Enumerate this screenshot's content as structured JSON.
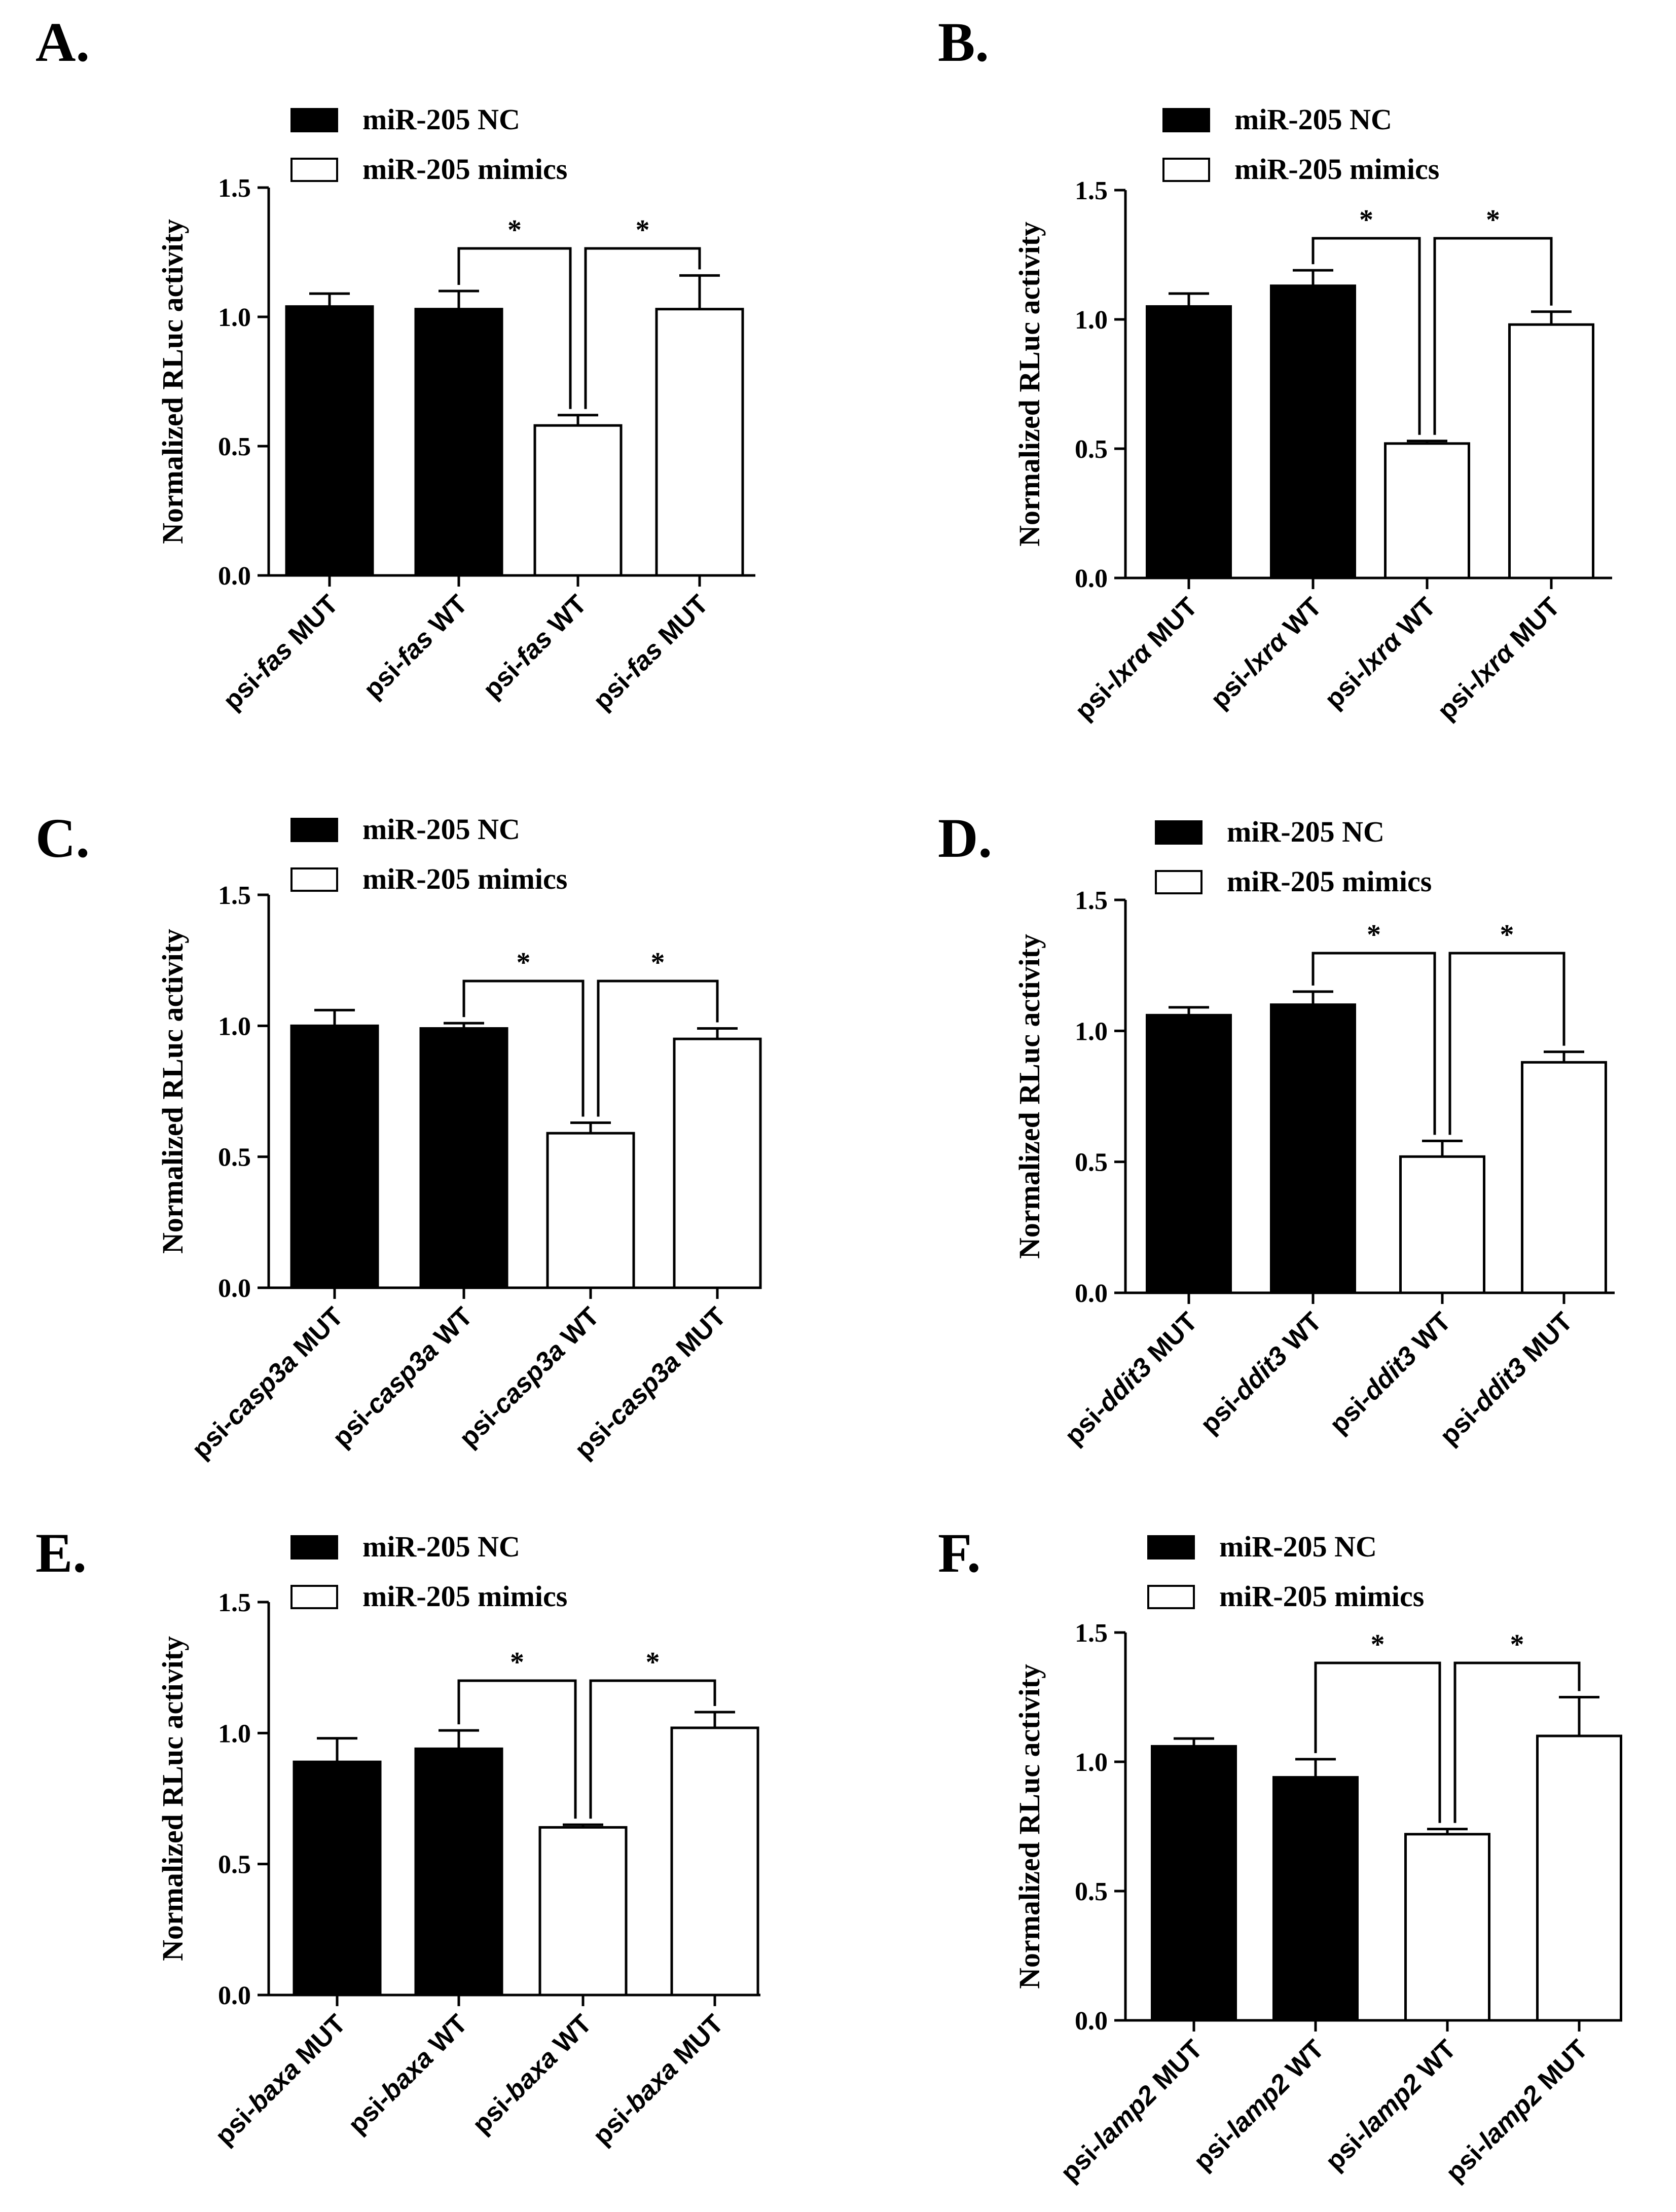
{
  "figure": {
    "panels": [
      "A.",
      "B.",
      "C.",
      "D.",
      "E.",
      "F."
    ]
  },
  "legend": {
    "nc_label": "miR-205 NC",
    "mimics_label": "miR-205 mimics"
  },
  "colors": {
    "nc": "#000000",
    "mimics": "#ffffff",
    "stroke": "#000000"
  },
  "chart_data": [
    {
      "panel": "A.",
      "type": "bar",
      "gene": "fas",
      "categories": [
        "psi-fas MUT",
        "psi-fas WT",
        "psi-fas WT",
        "psi-fas MUT"
      ],
      "category_parts": [
        [
          "psi-",
          "fas",
          " MUT"
        ],
        [
          "psi-",
          "fas",
          " WT"
        ],
        [
          "psi-",
          "fas",
          " WT"
        ],
        [
          "psi-",
          "fas",
          " MUT"
        ]
      ],
      "groups": [
        "miR-205 NC",
        "miR-205 NC",
        "miR-205 mimics",
        "miR-205 mimics"
      ],
      "values": [
        1.04,
        1.03,
        0.58,
        1.03
      ],
      "errors": [
        0.05,
        0.07,
        0.04,
        0.13
      ],
      "ylabel": "Normalized RLuc activity",
      "ylim": [
        0,
        1.5
      ],
      "yticks": [
        "0.0",
        "0.5",
        "1.0",
        "1.5"
      ],
      "significance": [
        {
          "from": 1,
          "to": 2,
          "label": "*"
        },
        {
          "from": 2,
          "to": 3,
          "label": "*"
        }
      ]
    },
    {
      "panel": "B.",
      "type": "bar",
      "gene": "lxrα",
      "categories": [
        "psi-lxrα MUT",
        "psi-lxrα WT",
        "psi-lxrα WT",
        "psi-lxrα MUT"
      ],
      "category_parts": [
        [
          "psi-",
          "lxrα",
          " MUT"
        ],
        [
          "psi-",
          "lxrα",
          " WT"
        ],
        [
          "psi-",
          "lxrα",
          " WT"
        ],
        [
          "psi-",
          "lxrα",
          " MUT"
        ]
      ],
      "groups": [
        "miR-205 NC",
        "miR-205 NC",
        "miR-205 mimics",
        "miR-205 mimics"
      ],
      "values": [
        1.05,
        1.13,
        0.52,
        0.98
      ],
      "errors": [
        0.05,
        0.06,
        0.01,
        0.05
      ],
      "ylabel": "Normalized RLuc activity",
      "ylim": [
        0,
        1.5
      ],
      "yticks": [
        "0.0",
        "0.5",
        "1.0",
        "1.5"
      ],
      "significance": [
        {
          "from": 1,
          "to": 2,
          "label": "*"
        },
        {
          "from": 2,
          "to": 3,
          "label": "*"
        }
      ]
    },
    {
      "panel": "C.",
      "type": "bar",
      "gene": "casp3a",
      "categories": [
        "psi-casp3a MUT",
        "psi-casp3a WT",
        "psi-casp3a WT",
        "psi-casp3a MUT"
      ],
      "category_parts": [
        [
          "psi-",
          "casp3a",
          " MUT"
        ],
        [
          "psi-",
          "casp3a",
          " WT"
        ],
        [
          "psi-",
          "casp3a",
          " WT"
        ],
        [
          "psi-",
          "casp3a",
          " MUT"
        ]
      ],
      "groups": [
        "miR-205 NC",
        "miR-205 NC",
        "miR-205 mimics",
        "miR-205 mimics"
      ],
      "values": [
        1.0,
        0.99,
        0.59,
        0.95
      ],
      "errors": [
        0.06,
        0.02,
        0.04,
        0.04
      ],
      "ylabel": "Normalized RLuc activity",
      "ylim": [
        0,
        1.5
      ],
      "yticks": [
        "0.0",
        "0.5",
        "1.0",
        "1.5"
      ],
      "significance": [
        {
          "from": 1,
          "to": 2,
          "label": "*"
        },
        {
          "from": 2,
          "to": 3,
          "label": "*"
        }
      ]
    },
    {
      "panel": "D.",
      "type": "bar",
      "gene": "ddit3",
      "categories": [
        "psi-ddit3 MUT",
        "psi-ddit3 WT",
        "psi-ddit3 WT",
        "psi-ddit3 MUT"
      ],
      "category_parts": [
        [
          "psi-",
          "ddit3",
          " MUT"
        ],
        [
          "psi-",
          "ddit3",
          " WT"
        ],
        [
          "psi-",
          "ddit3",
          " WT"
        ],
        [
          "psi-",
          "ddit3",
          " MUT"
        ]
      ],
      "groups": [
        "miR-205 NC",
        "miR-205 NC",
        "miR-205 mimics",
        "miR-205 mimics"
      ],
      "values": [
        1.06,
        1.1,
        0.52,
        0.88
      ],
      "errors": [
        0.03,
        0.05,
        0.06,
        0.04
      ],
      "ylabel": "Normalized RLuc activity",
      "ylim": [
        0,
        1.5
      ],
      "yticks": [
        "0.0",
        "0.5",
        "1.0",
        "1.5"
      ],
      "significance": [
        {
          "from": 1,
          "to": 2,
          "label": "*"
        },
        {
          "from": 2,
          "to": 3,
          "label": "*"
        }
      ]
    },
    {
      "panel": "E.",
      "type": "bar",
      "gene": "baxa",
      "categories": [
        "psi-baxa MUT",
        "psi-baxa WT",
        "psi-baxa WT",
        "psi-baxa MUT"
      ],
      "category_parts": [
        [
          "psi-",
          "baxa",
          " MUT"
        ],
        [
          "psi-",
          "baxa",
          " WT"
        ],
        [
          "psi-",
          "baxa",
          " WT"
        ],
        [
          "psi-",
          "baxa",
          " MUT"
        ]
      ],
      "groups": [
        "miR-205 NC",
        "miR-205 NC",
        "miR-205 mimics",
        "miR-205 mimics"
      ],
      "values": [
        0.89,
        0.94,
        0.64,
        1.02
      ],
      "errors": [
        0.09,
        0.07,
        0.01,
        0.06
      ],
      "ylabel": "Normalized RLuc activity",
      "ylim": [
        0,
        1.5
      ],
      "yticks": [
        "0.0",
        "0.5",
        "1.0",
        "1.5"
      ],
      "significance": [
        {
          "from": 1,
          "to": 2,
          "label": "*"
        },
        {
          "from": 2,
          "to": 3,
          "label": "*"
        }
      ]
    },
    {
      "panel": "F.",
      "type": "bar",
      "gene": "lamp2",
      "categories": [
        "psi-lamp2 MUT",
        "psi-lamp2 WT",
        "psi-lamp2 WT",
        "psi-lamp2 MUT"
      ],
      "category_parts": [
        [
          "psi-",
          "lamp2",
          " MUT"
        ],
        [
          "psi-",
          "lamp2",
          " WT"
        ],
        [
          "psi-",
          "lamp2",
          " WT"
        ],
        [
          "psi-",
          "lamp2",
          " MUT"
        ]
      ],
      "groups": [
        "miR-205 NC",
        "miR-205 NC",
        "miR-205 mimics",
        "miR-205 mimics"
      ],
      "values": [
        1.06,
        0.94,
        0.72,
        1.1
      ],
      "errors": [
        0.03,
        0.07,
        0.02,
        0.15
      ],
      "ylabel": "Normalized RLuc activity",
      "ylim": [
        0,
        1.5
      ],
      "yticks": [
        "0.0",
        "0.5",
        "1.0",
        "1.5"
      ],
      "significance": [
        {
          "from": 1,
          "to": 2,
          "label": "*"
        },
        {
          "from": 2,
          "to": 3,
          "label": "*"
        }
      ]
    }
  ]
}
